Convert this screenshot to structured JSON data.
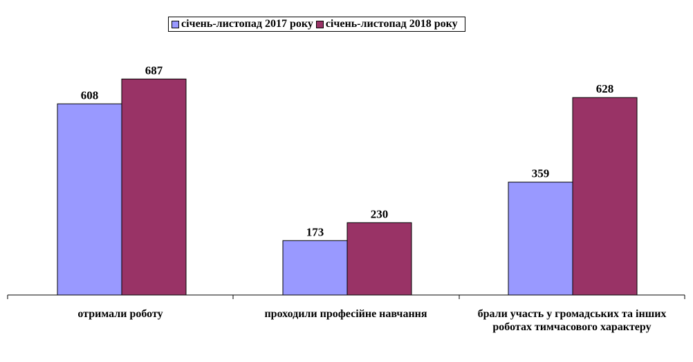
{
  "chart_data": {
    "type": "bar",
    "categories": [
      "отримали роботу",
      "проходили професійне навчання",
      "брали участь у громадських та інших роботах тимчасового характеру"
    ],
    "series": [
      {
        "name": "січень-листопад 2017 року",
        "values": [
          608,
          173,
          359
        ],
        "color": "#9999FF"
      },
      {
        "name": "січень-листопад 2018 року",
        "values": [
          687,
          230,
          628
        ],
        "color": "#993366"
      }
    ],
    "ylim": [
      0,
      700
    ],
    "grid": false,
    "legend_position": "top-center"
  }
}
